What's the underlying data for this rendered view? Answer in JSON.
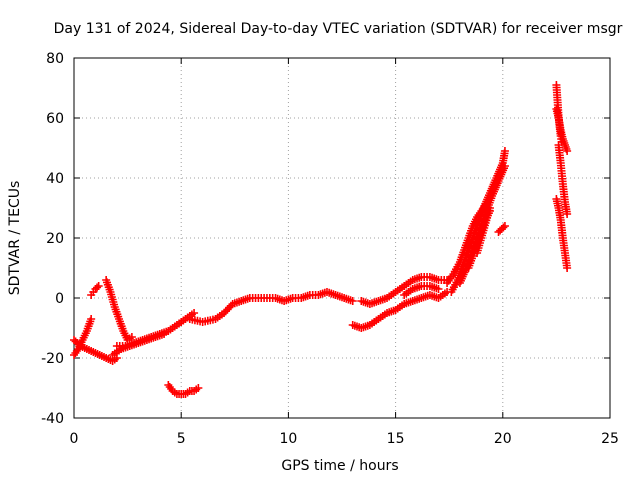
{
  "chart_data": {
    "type": "scatter",
    "title": "Day 131 of 2024, Sidereal Day-to-day VTEC variation (SDTVAR) for receiver msgr",
    "xlabel": "GPS time / hours",
    "ylabel": "SDTVAR / TECUs",
    "xlim": [
      0,
      25
    ],
    "ylim": [
      -40,
      80
    ],
    "xticks": [
      0,
      5,
      10,
      15,
      20,
      25
    ],
    "yticks": [
      -40,
      -20,
      0,
      20,
      40,
      60,
      80
    ],
    "grid": true,
    "marker": "plus",
    "color": "#ff0000",
    "segments": [
      {
        "x": [
          0.0,
          0.2,
          0.4,
          0.6,
          0.8
        ],
        "y": [
          -19,
          -17,
          -14,
          -11,
          -7
        ]
      },
      {
        "x": [
          0.0,
          0.3,
          0.6,
          0.9,
          1.2,
          1.5,
          1.8,
          2.0
        ],
        "y": [
          -14,
          -16,
          -17,
          -18,
          -19,
          -20,
          -21,
          -20
        ]
      },
      {
        "x": [
          0.8,
          0.9,
          1.0,
          1.15
        ],
        "y": [
          1,
          2,
          3,
          4
        ]
      },
      {
        "x": [
          1.5,
          1.7,
          1.9,
          2.1,
          2.3,
          2.5,
          2.7
        ],
        "y": [
          6,
          2,
          -3,
          -7,
          -11,
          -14,
          -13
        ]
      },
      {
        "x": [
          1.8,
          2.2,
          2.6,
          3.0,
          3.4,
          3.8,
          4.2
        ],
        "y": [
          -19,
          -17,
          -16,
          -15,
          -14,
          -13,
          -12
        ]
      },
      {
        "x": [
          2.0,
          2.4,
          2.8,
          3.2,
          3.6,
          4.0,
          4.4,
          4.8,
          5.2,
          5.6
        ],
        "y": [
          -16,
          -16,
          -15,
          -14,
          -13,
          -12,
          -11,
          -9,
          -7,
          -5
        ]
      },
      {
        "x": [
          4.4,
          4.6,
          4.8,
          5.0,
          5.2,
          5.4,
          5.6,
          5.8
        ],
        "y": [
          -29,
          -31,
          -32,
          -32,
          -32,
          -31,
          -31,
          -30
        ]
      },
      {
        "x": [
          5.4,
          6.0,
          6.6,
          7.0,
          7.4,
          7.8,
          8.2,
          8.6,
          9.0,
          9.4,
          9.8,
          10.2,
          10.6,
          11.0,
          11.4,
          11.8,
          12.2,
          12.6,
          13.0
        ],
        "y": [
          -7,
          -8,
          -7,
          -5,
          -2,
          -1,
          0,
          0,
          0,
          0,
          -1,
          0,
          0,
          1,
          1,
          2,
          1,
          0,
          -1
        ]
      },
      {
        "x": [
          13.4,
          13.8,
          14.2,
          14.6,
          15.0,
          15.4,
          15.8,
          16.2,
          16.6,
          17.0,
          17.4
        ],
        "y": [
          -1,
          -2,
          -1,
          0,
          2,
          4,
          6,
          7,
          7,
          6,
          6
        ]
      },
      {
        "x": [
          13.0,
          13.4,
          13.8,
          14.2,
          14.6,
          15.0,
          15.4,
          15.8,
          16.2,
          16.6,
          17.0,
          17.4
        ],
        "y": [
          -9,
          -10,
          -9,
          -7,
          -5,
          -4,
          -2,
          -1,
          0,
          1,
          0,
          2
        ]
      },
      {
        "x": [
          15.4,
          15.8,
          16.2,
          16.6,
          17.0
        ],
        "y": [
          1,
          3,
          4,
          4,
          3
        ]
      },
      {
        "x": [
          17.4,
          17.7,
          18.0,
          18.2,
          18.4,
          18.6,
          18.8,
          19.0,
          19.2
        ],
        "y": [
          5,
          8,
          12,
          16,
          20,
          24,
          27,
          29,
          31
        ]
      },
      {
        "x": [
          17.6,
          17.9,
          18.2,
          18.5,
          18.8,
          19.1,
          19.4,
          19.7,
          20.0,
          20.1
        ],
        "y": [
          2,
          6,
          12,
          18,
          24,
          30,
          35,
          40,
          45,
          49
        ]
      },
      {
        "x": [
          18.0,
          18.3,
          18.6,
          18.9,
          19.2,
          19.5,
          19.8,
          20.1
        ],
        "y": [
          5,
          10,
          16,
          22,
          28,
          34,
          39,
          44
        ]
      },
      {
        "x": [
          18.4,
          18.6,
          18.8,
          19.0,
          19.2,
          19.4
        ],
        "y": [
          10,
          14,
          18,
          22,
          26,
          29
        ]
      },
      {
        "x": [
          18.8,
          19.0,
          19.2,
          19.4
        ],
        "y": [
          15,
          20,
          25,
          30
        ]
      },
      {
        "x": [
          19.8,
          19.95,
          20.1
        ],
        "y": [
          22,
          23,
          24
        ]
      },
      {
        "x": [
          22.5,
          22.55,
          22.6,
          22.65,
          22.7,
          22.75
        ],
        "y": [
          71,
          66,
          61,
          57,
          54,
          52
        ]
      },
      {
        "x": [
          22.5,
          22.6,
          22.7,
          22.8,
          22.9,
          23.0
        ],
        "y": [
          63,
          60,
          56,
          53,
          51,
          49
        ]
      },
      {
        "x": [
          22.6,
          22.7,
          22.8,
          22.9,
          23.0
        ],
        "y": [
          51,
          45,
          38,
          32,
          28
        ]
      },
      {
        "x": [
          22.5,
          22.6,
          22.7,
          22.8,
          22.9,
          23.0
        ],
        "y": [
          33,
          30,
          26,
          20,
          15,
          10
        ]
      }
    ]
  }
}
